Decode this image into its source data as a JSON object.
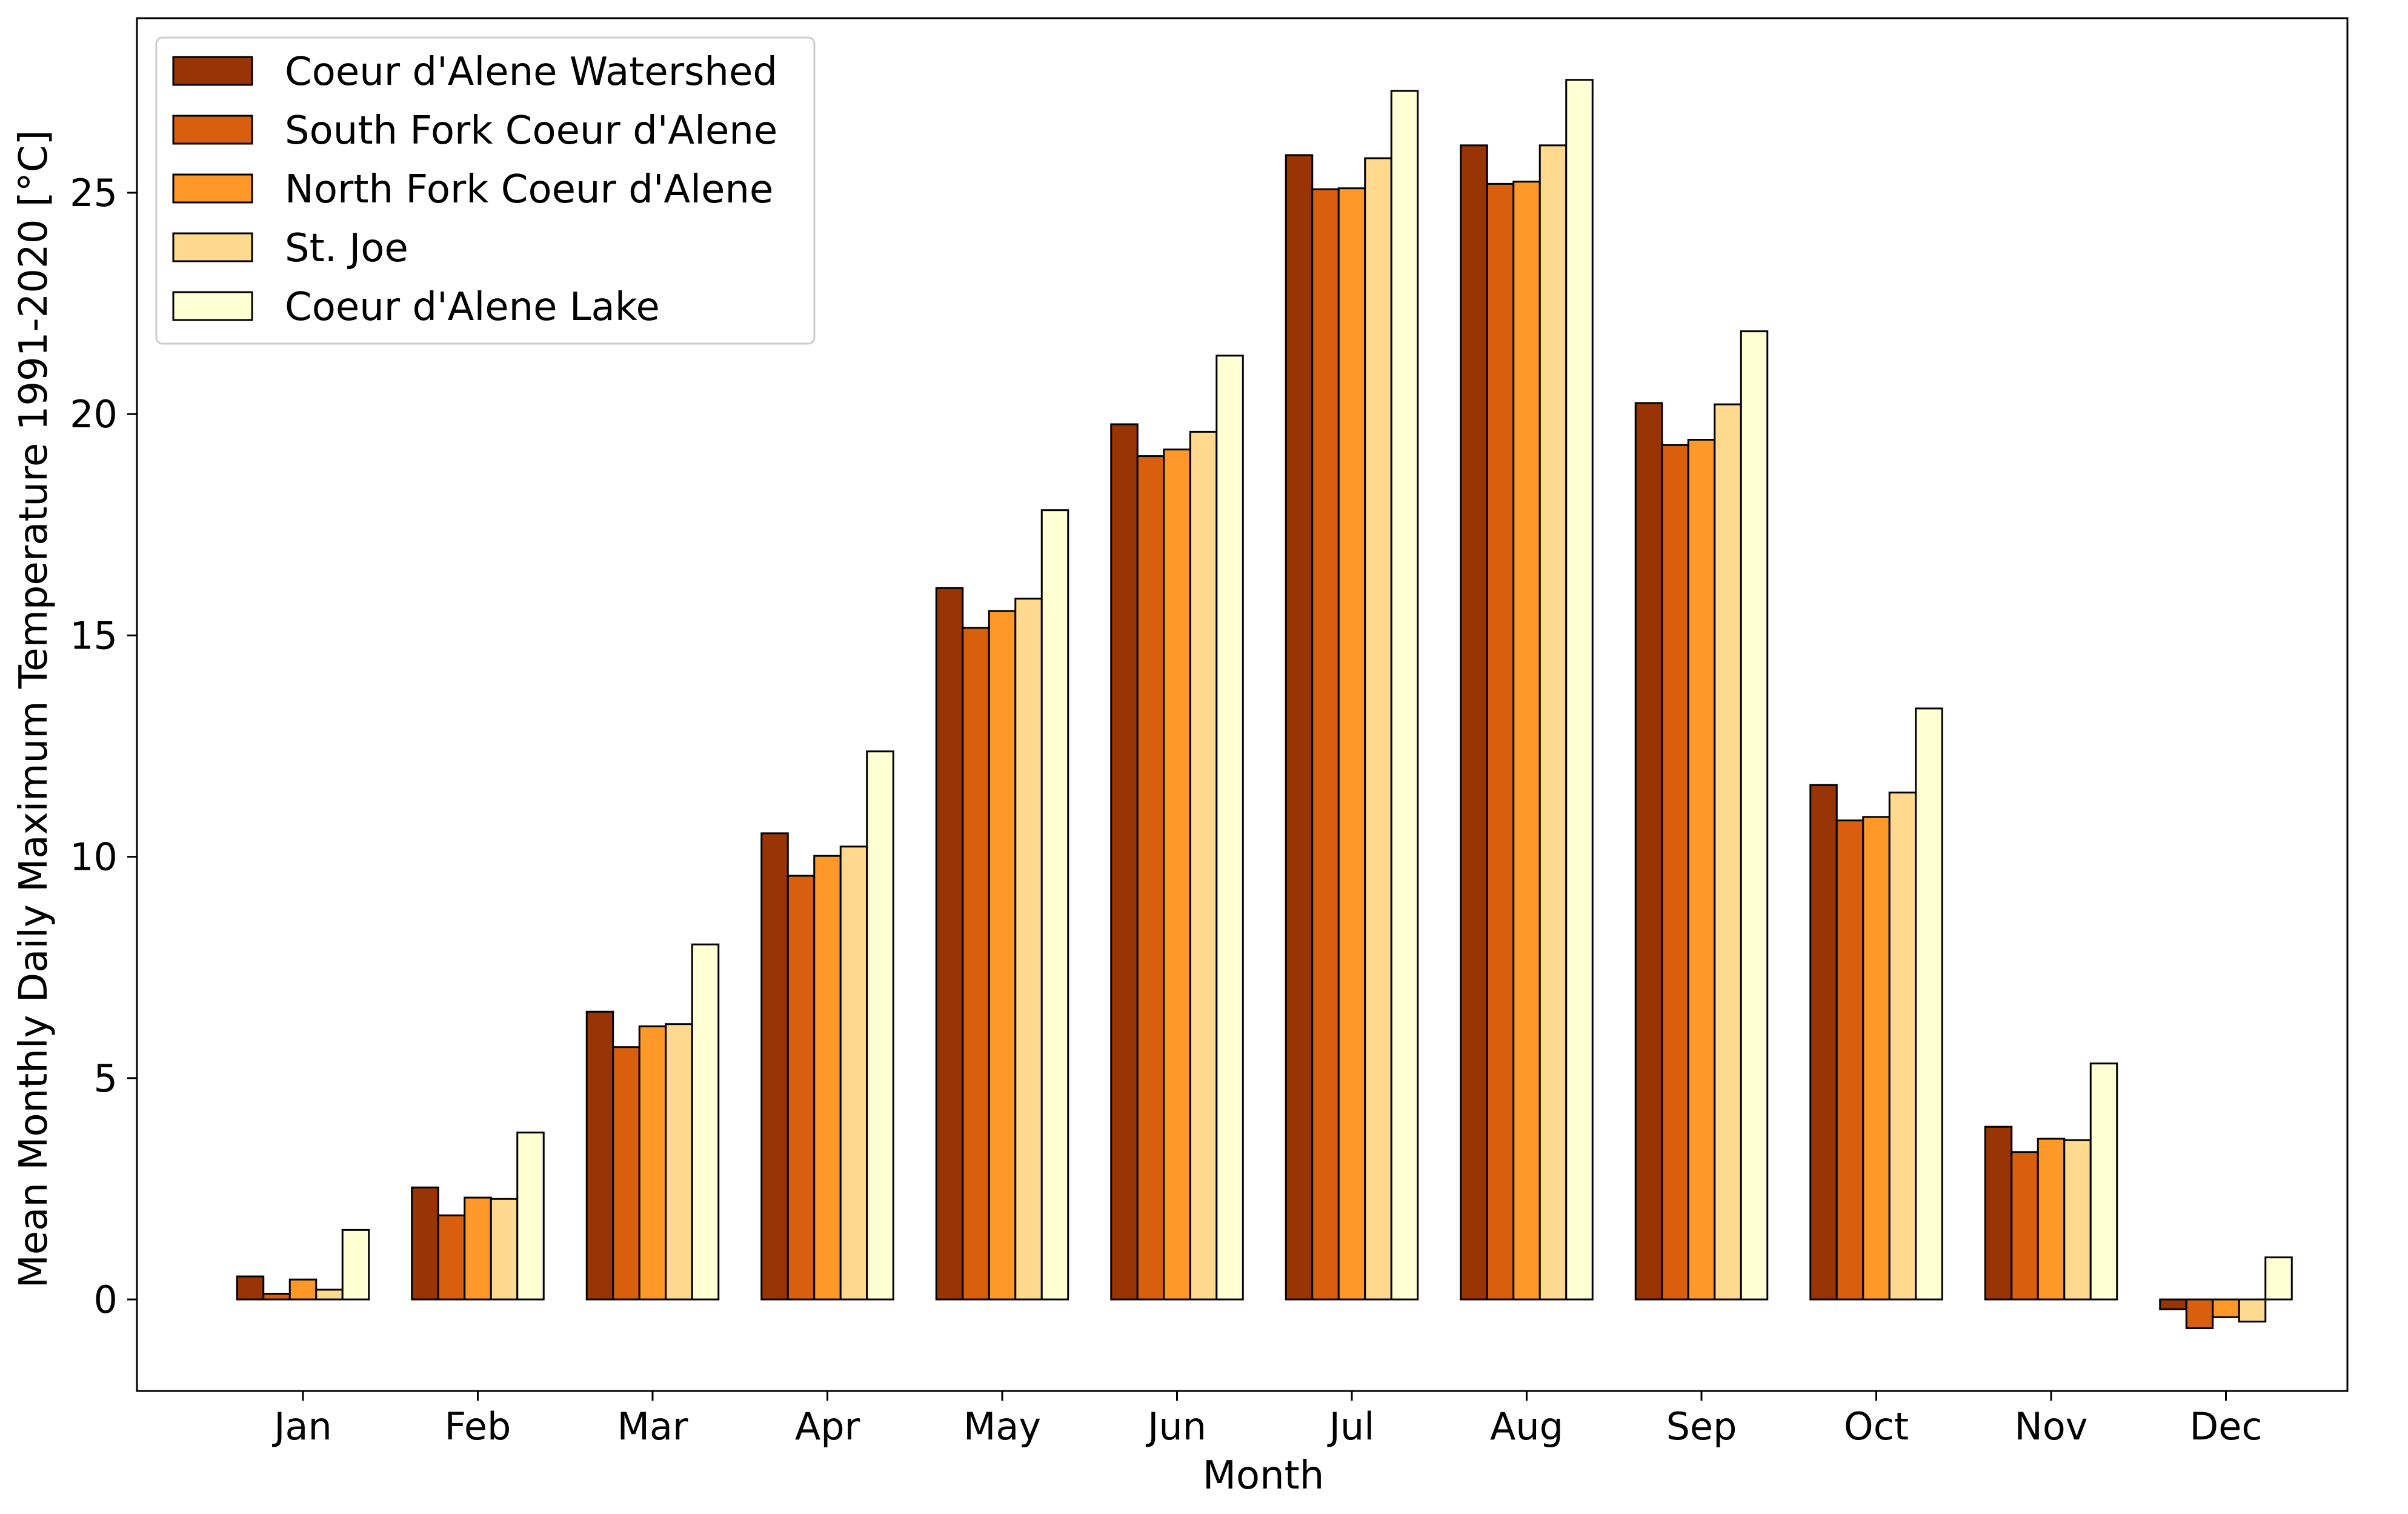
{
  "chart_data": {
    "type": "bar",
    "title": "",
    "xlabel": "Month",
    "ylabel": "Mean Monthly Daily Maximum Temperature 1991-2020 [°C]",
    "categories": [
      "Jan",
      "Feb",
      "Mar",
      "Apr",
      "May",
      "Jun",
      "Jul",
      "Aug",
      "Sep",
      "Oct",
      "Nov",
      "Dec"
    ],
    "ylim": [
      -2,
      29
    ],
    "yticks": [
      0,
      5,
      10,
      15,
      20,
      25
    ],
    "legend_position": "top-left",
    "grid": false,
    "series": [
      {
        "name": "Coeur d'Alene Watershed",
        "color": "#993404",
        "values": [
          0.52,
          2.53,
          6.5,
          10.53,
          16.07,
          19.77,
          25.85,
          26.07,
          20.25,
          11.62,
          3.9,
          -0.22
        ]
      },
      {
        "name": "South Fork Coeur d'Alene",
        "color": "#d95f0e",
        "values": [
          0.13,
          1.9,
          5.7,
          9.57,
          15.17,
          19.05,
          25.08,
          25.2,
          19.3,
          10.82,
          3.33,
          -0.65
        ]
      },
      {
        "name": "North Fork Coeur d'Alene",
        "color": "#fe9929",
        "values": [
          0.45,
          2.3,
          6.17,
          10.02,
          15.55,
          19.2,
          25.1,
          25.25,
          19.42,
          10.9,
          3.63,
          -0.4
        ]
      },
      {
        "name": "St. Joe",
        "color": "#fed98e",
        "values": [
          0.22,
          2.27,
          6.22,
          10.23,
          15.83,
          19.6,
          25.78,
          26.07,
          20.22,
          11.45,
          3.6,
          -0.5
        ]
      },
      {
        "name": "Coeur d'Alene Lake",
        "color": "#ffffd4",
        "values": [
          1.57,
          3.77,
          8.02,
          12.38,
          17.83,
          21.32,
          27.3,
          27.55,
          21.87,
          13.35,
          5.33,
          0.95
        ]
      }
    ]
  }
}
